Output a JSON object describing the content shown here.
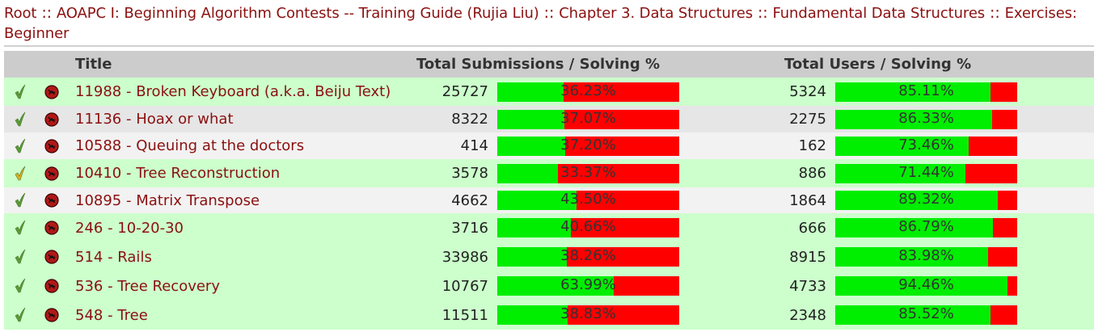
{
  "breadcrumb": [
    "Root",
    "AOAPC I: Beginning Algorithm Contests -- Training Guide (Rujia Liu)",
    "Chapter 3. Data Structures",
    "Fundamental Data Structures",
    "Exercises: Beginner"
  ],
  "breadcrumb_separator": " :: ",
  "table": {
    "headers": {
      "title": "Title",
      "submissions": "Total Submissions / Solving %",
      "users": "Total Users / Solving %"
    },
    "rows": [
      {
        "status": "solved",
        "title": "11988 - Broken Keyboard (a.k.a. Beiju Text)",
        "submissions": "25727",
        "sub_pct": "36.23%",
        "sub_frac": 0.3623,
        "users": "5324",
        "user_pct": "85.11%",
        "user_frac": 0.8511,
        "bg": "#ccffcc"
      },
      {
        "status": "solved",
        "title": "11136 - Hoax or what",
        "submissions": "8322",
        "sub_pct": "37.07%",
        "sub_frac": 0.3707,
        "users": "2275",
        "user_pct": "86.33%",
        "user_frac": 0.8633,
        "bg": "#e6e6e6"
      },
      {
        "status": "solved",
        "title": "10588 - Queuing at the doctors",
        "submissions": "414",
        "sub_pct": "37.20%",
        "sub_frac": 0.372,
        "users": "162",
        "user_pct": "73.46%",
        "user_frac": 0.7346,
        "bg": "#f2f2f2"
      },
      {
        "status": "tried",
        "title": "10410 - Tree Reconstruction",
        "submissions": "3578",
        "sub_pct": "33.37%",
        "sub_frac": 0.3337,
        "users": "886",
        "user_pct": "71.44%",
        "user_frac": 0.7144,
        "bg": "#ccffcc"
      },
      {
        "status": "solved",
        "title": "10895 - Matrix Transpose",
        "submissions": "4662",
        "sub_pct": "43.50%",
        "sub_frac": 0.435,
        "users": "1864",
        "user_pct": "89.32%",
        "user_frac": 0.8932,
        "bg": "#f2f2f2"
      },
      {
        "status": "solved",
        "title": "246 - 10-20-30",
        "submissions": "3716",
        "sub_pct": "40.66%",
        "sub_frac": 0.4066,
        "users": "666",
        "user_pct": "86.79%",
        "user_frac": 0.8679,
        "bg": "#ccffcc"
      },
      {
        "status": "solved",
        "title": "514 - Rails",
        "submissions": "33986",
        "sub_pct": "38.26%",
        "sub_frac": 0.3826,
        "users": "8915",
        "user_pct": "83.98%",
        "user_frac": 0.8398,
        "bg": "#ccffcc"
      },
      {
        "status": "solved",
        "title": "536 - Tree Recovery",
        "submissions": "10767",
        "sub_pct": "63.99%",
        "sub_frac": 0.6399,
        "users": "4733",
        "user_pct": "94.46%",
        "user_frac": 0.9446,
        "bg": "#ccffcc"
      },
      {
        "status": "solved",
        "title": "548 - Tree",
        "submissions": "11511",
        "sub_pct": "38.83%",
        "sub_frac": 0.3883,
        "users": "2348",
        "user_pct": "85.52%",
        "user_frac": 0.8552,
        "bg": "#ccffcc"
      }
    ]
  },
  "colors": {
    "link": "#8b1010",
    "bar_success": "#00ee00",
    "bar_fail": "#ff0000",
    "check_solved": "#5a9a3a",
    "check_tried": "#e0b020",
    "pdf_icon": "#b01818"
  },
  "icons": {
    "solved": "green-check-icon",
    "tried": "yellow-check-icon",
    "pdf": "pdf-icon"
  }
}
